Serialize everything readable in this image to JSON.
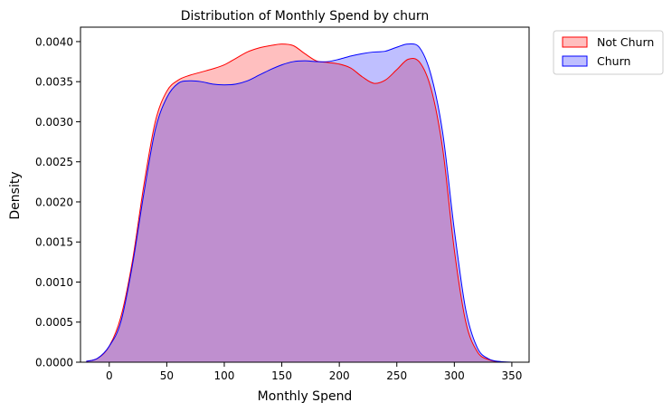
{
  "chart_data": {
    "type": "area",
    "kind": "kde",
    "title": "Distribution of Monthly Spend by churn",
    "xlabel": "Monthly Spend",
    "ylabel": "Density",
    "xlim": [
      -25,
      365
    ],
    "ylim": [
      0,
      0.00418
    ],
    "xticks": [
      0,
      50,
      100,
      150,
      200,
      250,
      300,
      350
    ],
    "yticks": [
      0.0,
      0.0005,
      0.001,
      0.0015,
      0.002,
      0.0025,
      0.003,
      0.0035,
      0.004
    ],
    "ytick_labels": [
      "0.0000",
      "0.0005",
      "0.0010",
      "0.0015",
      "0.0020",
      "0.0025",
      "0.0030",
      "0.0035",
      "0.0040"
    ],
    "grid": false,
    "legend_position": "outside-top-right",
    "series": [
      {
        "name": "Not Churn",
        "color": "#ff0000",
        "fill_color": "#ff0000",
        "x": [
          -20,
          -10,
          0,
          10,
          20,
          30,
          40,
          50,
          60,
          70,
          80,
          90,
          100,
          110,
          120,
          130,
          140,
          150,
          160,
          170,
          180,
          190,
          200,
          210,
          220,
          230,
          240,
          250,
          260,
          270,
          280,
          290,
          300,
          310,
          320,
          330,
          340,
          350
        ],
        "y": [
          1e-05,
          5e-05,
          0.0002,
          0.00056,
          0.00125,
          0.0022,
          0.003,
          0.00338,
          0.00352,
          0.00358,
          0.00362,
          0.00366,
          0.00371,
          0.00379,
          0.00387,
          0.00392,
          0.00395,
          0.00397,
          0.00395,
          0.00385,
          0.00376,
          0.00374,
          0.00372,
          0.00367,
          0.00356,
          0.00348,
          0.00352,
          0.00365,
          0.00378,
          0.00374,
          0.0034,
          0.00265,
          0.0014,
          0.0005,
          0.00013,
          3e-05,
          5e-06,
          0.0
        ]
      },
      {
        "name": "Churn",
        "color": "#0000ff",
        "fill_color": "#0000ff",
        "x": [
          -20,
          -10,
          0,
          10,
          20,
          30,
          40,
          50,
          60,
          70,
          80,
          90,
          100,
          110,
          120,
          130,
          140,
          150,
          160,
          170,
          180,
          190,
          200,
          210,
          220,
          230,
          240,
          250,
          260,
          270,
          280,
          290,
          300,
          310,
          320,
          330,
          340,
          350
        ],
        "y": [
          1e-05,
          5e-05,
          0.0002,
          0.0005,
          0.0012,
          0.0021,
          0.0029,
          0.0033,
          0.00348,
          0.00351,
          0.0035,
          0.00347,
          0.00346,
          0.00347,
          0.00351,
          0.00358,
          0.00365,
          0.00371,
          0.00375,
          0.00376,
          0.00375,
          0.00375,
          0.00378,
          0.00382,
          0.00385,
          0.00387,
          0.00388,
          0.00393,
          0.00397,
          0.00392,
          0.00357,
          0.00285,
          0.00165,
          0.00065,
          0.00018,
          4e-05,
          8e-06,
          0.0
        ]
      }
    ]
  }
}
